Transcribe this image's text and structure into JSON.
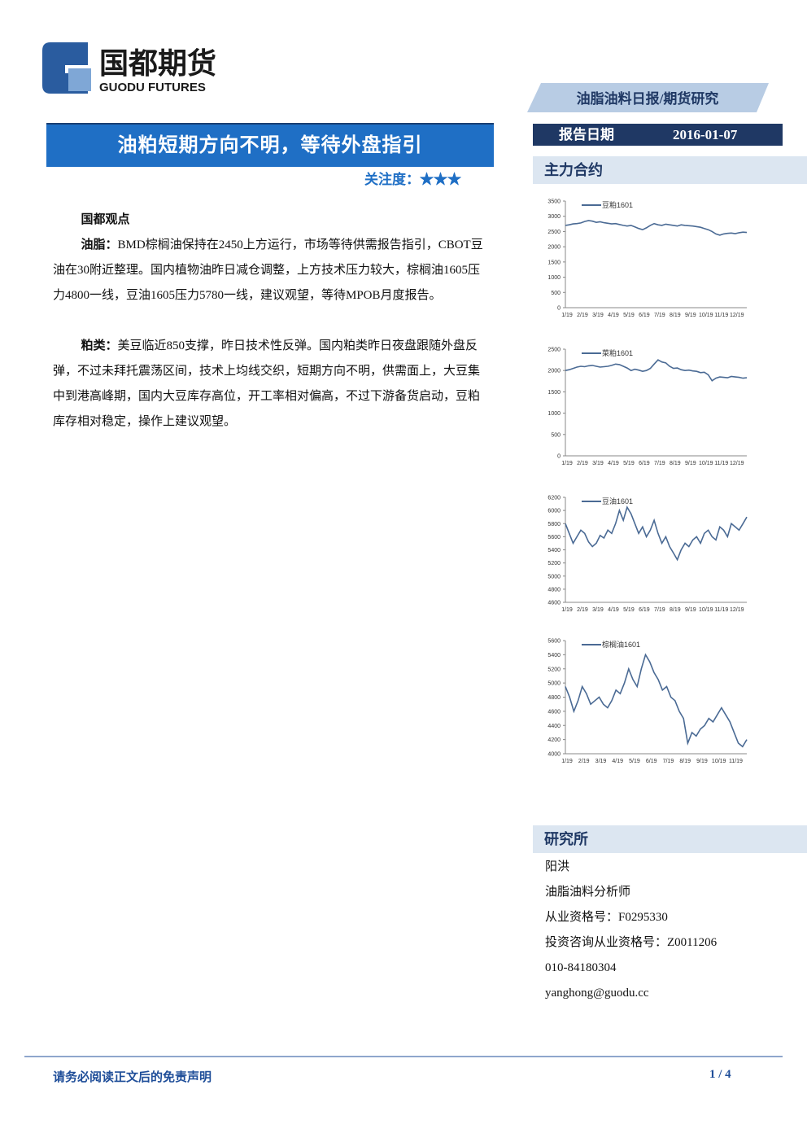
{
  "header": {
    "logo_cn": "国都期货",
    "logo_en": "GUODU FUTURES",
    "category": "油脂油料日报/期货研究"
  },
  "title": "油粕短期方向不明，等待外盘指引",
  "attention": {
    "label": "关注度：",
    "stars": "★★★"
  },
  "report_date": {
    "label": "报告日期",
    "value": "2016-01-07"
  },
  "body": {
    "heading": "国都观点",
    "paragraphs": [
      {
        "lead": "油脂：",
        "text": "BMD棕榈油保持在2450上方运行，市场等待供需报告指引，CBOT豆油在30附近整理。国内植物油昨日减仓调整，上方技术压力较大，棕榈油1605压力4800一线，豆油1605压力5780一线，建议观望，等待MPOB月度报告。"
      },
      {
        "lead": "粕类：",
        "text": "美豆临近850支撑，昨日技术性反弹。国内粕类昨日夜盘跟随外盘反弹，不过未拜托震荡区间，技术上均线交织，短期方向不明，供需面上，大豆集中到港高峰期，国内大豆库存高位，开工率相对偏高，不过下游备货启动，豆粕库存相对稳定，操作上建议观望。"
      }
    ]
  },
  "contracts_heading": "主力合约",
  "chart_data": [
    {
      "type": "line",
      "categories": [
        "1/19",
        null,
        null,
        null,
        "2/19",
        null,
        null,
        null,
        "3/19",
        null,
        null,
        null,
        "4/19",
        null,
        null,
        null,
        "5/19",
        null,
        null,
        null,
        "6/19",
        null,
        null,
        null,
        "7/19",
        null,
        null,
        null,
        "8/19",
        null,
        null,
        null,
        "9/19",
        null,
        null,
        null,
        "10/19",
        null,
        null,
        null,
        "11/19",
        null,
        null,
        null,
        "12/19",
        null,
        null,
        null
      ],
      "series": [
        {
          "name": "豆粕1601",
          "color": "#4a6a94",
          "values": [
            2700,
            2720,
            2750,
            2760,
            2780,
            2830,
            2860,
            2840,
            2800,
            2820,
            2790,
            2770,
            2750,
            2760,
            2730,
            2700,
            2680,
            2700,
            2650,
            2600,
            2560,
            2620,
            2700,
            2760,
            2720,
            2700,
            2740,
            2720,
            2700,
            2680,
            2720,
            2700,
            2690,
            2680,
            2660,
            2640,
            2600,
            2560,
            2500,
            2420,
            2380,
            2420,
            2440,
            2450,
            2430,
            2460,
            2480,
            2470
          ]
        }
      ],
      "ylim": [
        0,
        3500
      ],
      "yticks": [
        0,
        500,
        1000,
        1500,
        2000,
        2500,
        3000,
        3500
      ]
    },
    {
      "type": "line",
      "categories": [
        "1/19",
        null,
        null,
        null,
        "2/19",
        null,
        null,
        null,
        "3/19",
        null,
        null,
        null,
        "4/19",
        null,
        null,
        null,
        "5/19",
        null,
        null,
        null,
        "6/19",
        null,
        null,
        null,
        "7/19",
        null,
        null,
        null,
        "8/19",
        null,
        null,
        null,
        "9/19",
        null,
        null,
        null,
        "10/19",
        null,
        null,
        null,
        "11/19",
        null,
        null,
        null,
        "12/19",
        null,
        null,
        null
      ],
      "series": [
        {
          "name": "菜粕1601",
          "color": "#4a6a94",
          "values": [
            2000,
            2020,
            2050,
            2080,
            2100,
            2090,
            2110,
            2120,
            2100,
            2080,
            2090,
            2100,
            2120,
            2150,
            2140,
            2100,
            2060,
            2000,
            2030,
            2010,
            1980,
            2000,
            2050,
            2150,
            2250,
            2200,
            2180,
            2100,
            2050,
            2060,
            2020,
            2000,
            2010,
            1990,
            1980,
            1950,
            1960,
            1900,
            1760,
            1820,
            1850,
            1840,
            1830,
            1860,
            1850,
            1840,
            1820,
            1830
          ]
        }
      ],
      "ylim": [
        0,
        2500
      ],
      "yticks": [
        0,
        500,
        1000,
        1500,
        2000,
        2500
      ]
    },
    {
      "type": "line",
      "categories": [
        "1/19",
        null,
        null,
        null,
        "2/19",
        null,
        null,
        null,
        "3/19",
        null,
        null,
        null,
        "4/19",
        null,
        null,
        null,
        "5/19",
        null,
        null,
        null,
        "6/19",
        null,
        null,
        null,
        "7/19",
        null,
        null,
        null,
        "8/19",
        null,
        null,
        null,
        "9/19",
        null,
        null,
        null,
        "10/19",
        null,
        null,
        null,
        "11/19",
        null,
        null,
        null,
        "12/19",
        null,
        null,
        null
      ],
      "series": [
        {
          "name": "豆油1601",
          "color": "#4a6a94",
          "values": [
            5800,
            5650,
            5500,
            5600,
            5700,
            5650,
            5520,
            5450,
            5500,
            5620,
            5580,
            5700,
            5650,
            5800,
            6000,
            5850,
            6050,
            5950,
            5800,
            5650,
            5750,
            5600,
            5700,
            5850,
            5650,
            5500,
            5600,
            5450,
            5350,
            5250,
            5400,
            5500,
            5450,
            5550,
            5600,
            5500,
            5650,
            5700,
            5600,
            5550,
            5750,
            5700,
            5600,
            5800,
            5750,
            5700,
            5800,
            5900
          ]
        }
      ],
      "ylim": [
        4600,
        6200
      ],
      "yticks": [
        4600,
        4800,
        5000,
        5200,
        5400,
        5600,
        5800,
        6000,
        6200
      ]
    },
    {
      "type": "line",
      "categories": [
        "1/19",
        null,
        null,
        null,
        "2/19",
        null,
        null,
        null,
        "3/19",
        null,
        null,
        null,
        "4/19",
        null,
        null,
        null,
        "5/19",
        null,
        null,
        null,
        "6/19",
        null,
        null,
        null,
        "7/19",
        null,
        null,
        null,
        "8/19",
        null,
        null,
        null,
        "9/19",
        null,
        null,
        null,
        "10/19",
        null,
        null,
        null,
        "11/19",
        null,
        null,
        null
      ],
      "series": [
        {
          "name": "棕榈油1601",
          "color": "#4a6a94",
          "values": [
            4950,
            4800,
            4600,
            4750,
            4950,
            4850,
            4700,
            4750,
            4800,
            4700,
            4650,
            4750,
            4900,
            4850,
            5000,
            5200,
            5050,
            4950,
            5200,
            5400,
            5300,
            5150,
            5050,
            4900,
            4950,
            4800,
            4750,
            4600,
            4500,
            4150,
            4300,
            4250,
            4350,
            4400,
            4500,
            4450,
            4550,
            4650,
            4550,
            4450,
            4300,
            4150,
            4100,
            4200
          ]
        }
      ],
      "ylim": [
        4000,
        5600
      ],
      "yticks": [
        4000,
        4200,
        4400,
        4600,
        4800,
        5000,
        5200,
        5400,
        5600
      ]
    }
  ],
  "research": {
    "heading": "研究所",
    "lines": [
      "阳洪",
      "油脂油料分析师",
      "从业资格号：F0295330",
      "投资咨询从业资格号：Z0011206",
      "010-84180304",
      "yanghong@guodu.cc"
    ]
  },
  "footer": {
    "disclaimer": "请务必阅读正文后的免责声明",
    "page": "1 / 4"
  }
}
